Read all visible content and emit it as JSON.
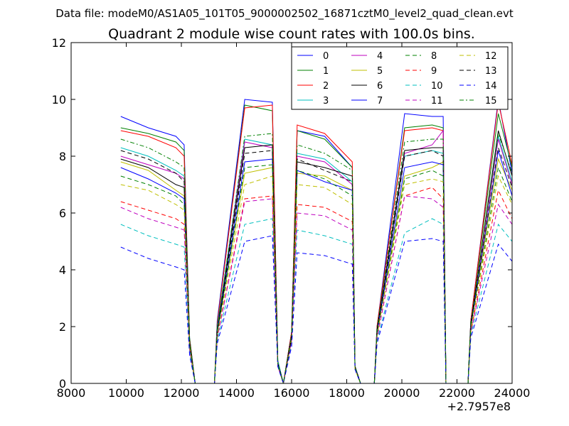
{
  "header": {
    "suptitle": "Data file: modeM0/AS1A05_101T05_9000002502_16871cztM0_level2_quad_clean.evt",
    "title": "Quadrant 2 module wise count rates with 100.0s bins."
  },
  "chart_data": {
    "type": "line",
    "title": "Quadrant 2 module wise count rates with 100.0s bins.",
    "xlabel": "",
    "ylabel": "",
    "xlim": [
      8000,
      24000
    ],
    "ylim": [
      0,
      12
    ],
    "x_offset_label": "+2.7957e8",
    "xticks": [
      8000,
      10000,
      12000,
      14000,
      16000,
      18000,
      20000,
      22000,
      24000
    ],
    "yticks": [
      0,
      2,
      4,
      6,
      8,
      10,
      12
    ],
    "grid": false,
    "legend_position": "top-right",
    "x": [
      9800,
      10800,
      11800,
      12100,
      12300,
      12500,
      13200,
      13300,
      14300,
      15300,
      15500,
      15700,
      16000,
      16200,
      17200,
      18200,
      18300,
      18500,
      19000,
      19100,
      20100,
      21100,
      21500,
      21600,
      22400,
      22500,
      23500,
      24000
    ],
    "series": [
      {
        "name": "0",
        "color": "#0000ff",
        "dash": "solid",
        "values": [
          9.4,
          9.0,
          8.7,
          8.4,
          1.6,
          0.0,
          0.0,
          2.2,
          10.0,
          9.9,
          0.8,
          0.0,
          1.8,
          8.9,
          8.7,
          7.6,
          0.6,
          0.0,
          0.0,
          2.0,
          9.5,
          9.4,
          9.4,
          0.0,
          0.0,
          2.2,
          10.0,
          7.4
        ]
      },
      {
        "name": "1",
        "color": "#008000",
        "dash": "solid",
        "values": [
          9.0,
          8.8,
          8.5,
          8.2,
          1.6,
          0.0,
          0.0,
          2.1,
          9.8,
          9.6,
          0.8,
          0.0,
          1.8,
          8.9,
          8.6,
          7.6,
          0.6,
          0.0,
          0.0,
          2.0,
          9.0,
          9.1,
          9.0,
          0.0,
          0.0,
          2.2,
          9.5,
          7.6
        ]
      },
      {
        "name": "2",
        "color": "#ff0000",
        "dash": "solid",
        "values": [
          8.9,
          8.7,
          8.3,
          8.0,
          1.5,
          0.0,
          0.0,
          2.1,
          9.7,
          9.8,
          0.8,
          0.0,
          1.8,
          9.1,
          8.8,
          7.8,
          0.6,
          0.0,
          0.0,
          2.0,
          8.9,
          9.0,
          8.9,
          0.0,
          0.0,
          2.2,
          9.9,
          7.7
        ]
      },
      {
        "name": "3",
        "color": "#00bfbf",
        "dash": "solid",
        "values": [
          8.3,
          8.0,
          7.5,
          7.3,
          1.4,
          0.0,
          0.0,
          2.0,
          8.6,
          8.4,
          0.8,
          0.0,
          1.7,
          8.1,
          7.9,
          7.1,
          0.6,
          0.0,
          0.0,
          1.9,
          8.0,
          8.2,
          8.1,
          0.0,
          0.0,
          2.1,
          8.7,
          7.1
        ]
      },
      {
        "name": "4",
        "color": "#bf00bf",
        "dash": "solid",
        "values": [
          8.0,
          7.7,
          7.4,
          7.2,
          1.4,
          0.0,
          0.0,
          1.9,
          8.5,
          8.3,
          0.7,
          0.0,
          1.7,
          8.0,
          7.8,
          7.0,
          0.6,
          0.0,
          0.0,
          1.9,
          8.1,
          8.4,
          8.9,
          0.0,
          0.0,
          2.1,
          8.6,
          7.0
        ]
      },
      {
        "name": "5",
        "color": "#bfbf00",
        "dash": "solid",
        "values": [
          7.8,
          7.5,
          6.8,
          6.6,
          1.3,
          0.0,
          0.0,
          1.8,
          7.4,
          7.6,
          0.7,
          0.0,
          1.6,
          7.4,
          7.3,
          6.8,
          0.6,
          0.0,
          0.0,
          1.8,
          7.3,
          7.6,
          7.8,
          0.0,
          0.0,
          2.0,
          7.9,
          6.8
        ]
      },
      {
        "name": "6",
        "color": "#000000",
        "dash": "solid",
        "values": [
          7.9,
          7.6,
          7.0,
          6.9,
          1.4,
          0.0,
          0.0,
          1.9,
          8.3,
          8.4,
          0.7,
          0.0,
          1.7,
          7.8,
          7.6,
          7.3,
          0.6,
          0.0,
          0.0,
          1.9,
          8.2,
          8.3,
          8.3,
          0.0,
          0.0,
          2.1,
          8.9,
          7.3
        ]
      },
      {
        "name": "7",
        "color": "#0000ff",
        "dash": "solid",
        "values": [
          7.6,
          7.2,
          6.7,
          6.5,
          1.3,
          0.0,
          0.0,
          1.8,
          7.8,
          7.9,
          0.7,
          0.0,
          1.6,
          7.5,
          7.1,
          6.8,
          0.6,
          0.0,
          0.0,
          1.8,
          7.6,
          7.8,
          7.7,
          0.0,
          0.0,
          2.0,
          8.2,
          6.6
        ]
      },
      {
        "name": "8",
        "color": "#008000",
        "dash": "dashed",
        "values": [
          7.3,
          7.0,
          6.6,
          6.3,
          1.3,
          0.0,
          0.0,
          1.7,
          7.6,
          7.7,
          0.7,
          0.0,
          1.6,
          7.5,
          7.2,
          6.6,
          0.5,
          0.0,
          0.0,
          1.7,
          7.2,
          7.5,
          7.3,
          0.0,
          0.0,
          1.9,
          7.6,
          6.4
        ]
      },
      {
        "name": "9",
        "color": "#ff0000",
        "dash": "dashed",
        "values": [
          6.4,
          6.1,
          5.8,
          5.6,
          1.2,
          0.0,
          0.0,
          1.6,
          6.5,
          6.6,
          0.6,
          0.0,
          1.5,
          6.3,
          6.2,
          5.7,
          0.5,
          0.0,
          0.0,
          1.6,
          6.6,
          6.9,
          6.5,
          0.0,
          0.0,
          1.8,
          6.8,
          5.8
        ]
      },
      {
        "name": "10",
        "color": "#00bfbf",
        "dash": "dashed",
        "values": [
          5.6,
          5.2,
          4.9,
          4.8,
          1.1,
          0.0,
          0.0,
          1.5,
          5.6,
          5.8,
          0.6,
          0.0,
          1.4,
          5.4,
          5.2,
          4.9,
          0.5,
          0.0,
          0.0,
          1.5,
          5.3,
          5.8,
          5.6,
          0.0,
          0.0,
          1.7,
          5.6,
          5.0
        ]
      },
      {
        "name": "11",
        "color": "#bf00bf",
        "dash": "dashed",
        "values": [
          6.2,
          5.8,
          5.5,
          5.4,
          1.2,
          0.0,
          0.0,
          1.6,
          6.4,
          6.5,
          0.6,
          0.0,
          1.5,
          6.0,
          5.9,
          5.4,
          0.5,
          0.0,
          0.0,
          1.6,
          6.6,
          6.5,
          6.2,
          0.0,
          0.0,
          1.8,
          6.3,
          5.6
        ]
      },
      {
        "name": "12",
        "color": "#bfbf00",
        "dash": "dashed",
        "values": [
          7.0,
          6.8,
          6.3,
          6.1,
          1.3,
          0.0,
          0.0,
          1.7,
          7.0,
          7.3,
          0.7,
          0.0,
          1.6,
          7.0,
          6.9,
          6.3,
          0.5,
          0.0,
          0.0,
          1.7,
          7.0,
          7.2,
          7.1,
          0.0,
          0.0,
          1.9,
          7.3,
          6.3
        ]
      },
      {
        "name": "13",
        "color": "#000000",
        "dash": "dashed",
        "values": [
          8.2,
          7.9,
          7.4,
          7.1,
          1.4,
          0.0,
          0.0,
          1.8,
          8.1,
          8.2,
          0.7,
          0.0,
          1.6,
          7.9,
          7.5,
          7.1,
          0.6,
          0.0,
          0.0,
          1.8,
          8.0,
          8.2,
          8.0,
          0.0,
          0.0,
          2.0,
          8.3,
          6.9
        ]
      },
      {
        "name": "14",
        "color": "#0000ff",
        "dash": "dashed",
        "values": [
          4.8,
          4.4,
          4.1,
          4.0,
          1.0,
          0.0,
          0.0,
          1.4,
          5.0,
          5.2,
          0.6,
          0.0,
          1.3,
          4.6,
          4.5,
          4.2,
          0.5,
          0.0,
          0.0,
          1.4,
          5.0,
          5.1,
          5.0,
          0.0,
          0.0,
          1.6,
          4.9,
          4.3
        ]
      },
      {
        "name": "15",
        "color": "#008000",
        "dash": "dashdot",
        "values": [
          8.6,
          8.3,
          7.8,
          7.6,
          1.4,
          0.0,
          0.0,
          1.9,
          8.7,
          8.8,
          0.7,
          0.0,
          1.7,
          8.4,
          8.1,
          7.5,
          0.6,
          0.0,
          0.0,
          1.9,
          8.5,
          8.6,
          8.6,
          0.0,
          0.0,
          2.1,
          8.8,
          7.4
        ]
      }
    ]
  }
}
